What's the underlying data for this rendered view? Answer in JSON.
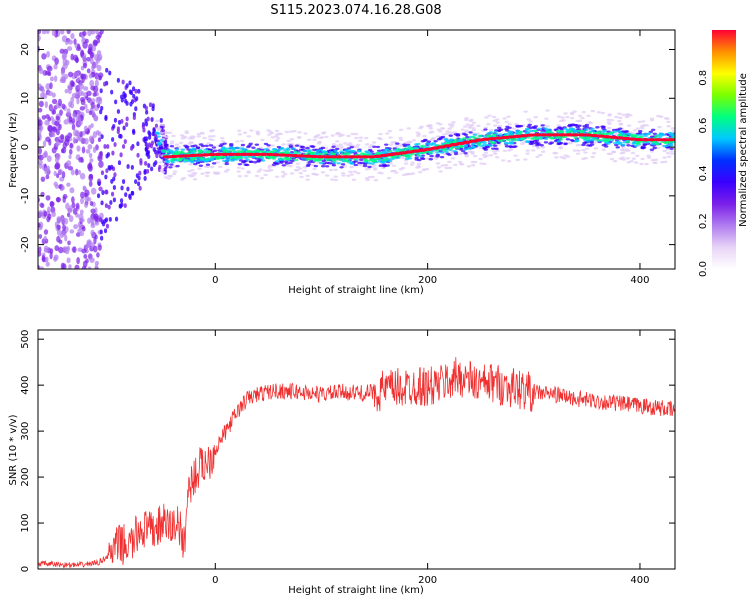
{
  "chart_data": [
    {
      "type": "heatmap",
      "title": "S115.2023.074.16.28.G08",
      "xlabel": "Height of straight line (km)",
      "ylabel": "Frequency (Hz)",
      "xlim": [
        -167,
        433
      ],
      "ylim": [
        -25,
        24
      ],
      "xticks": [
        0,
        200,
        400
      ],
      "yticks": [
        -20,
        -10,
        0,
        10,
        20
      ],
      "colorbar": {
        "label": "Normalized spectral amplitude",
        "range": [
          0,
          1
        ],
        "ticks": [
          "0.0",
          "0.2",
          "0.4",
          "0.6",
          "0.8"
        ],
        "colors": [
          "#ffffff",
          "#e8d4f6",
          "#b07cf0",
          "#7b1fe8",
          "#3a00ff",
          "#0030ff",
          "#00c8ff",
          "#00ff80",
          "#7aff00",
          "#ffff00",
          "#ff9000",
          "#ff0033"
        ]
      },
      "ridge": {
        "description_free": true,
        "points": [
          [
            -100,
            -1
          ],
          [
            -80,
            2
          ],
          [
            -65,
            1
          ],
          [
            -55,
            2
          ],
          [
            -45,
            -2
          ],
          [
            0,
            -1.5
          ],
          [
            50,
            -1.5
          ],
          [
            100,
            -2
          ],
          [
            150,
            -2
          ],
          [
            200,
            -0.5
          ],
          [
            250,
            1.5
          ],
          [
            300,
            2.5
          ],
          [
            350,
            2.5
          ],
          [
            400,
            1.5
          ],
          [
            433,
            1.5
          ]
        ]
      }
    },
    {
      "type": "line",
      "xlabel": "Height of straight line (km)",
      "ylabel": "SNR (10 * v/v)",
      "xlim": [
        -167,
        433
      ],
      "ylim": [
        0,
        520
      ],
      "xticks": [
        0,
        200,
        400
      ],
      "yticks": [
        0,
        100,
        200,
        300,
        400,
        500
      ],
      "series": [
        {
          "color": "#f03030",
          "x": [
            -167,
            -150,
            -130,
            -110,
            -100,
            -90,
            -80,
            -70,
            -60,
            -50,
            -40,
            -35,
            -30,
            -25,
            -20,
            -15,
            -10,
            -5,
            0,
            10,
            20,
            30,
            40,
            50,
            60,
            80,
            100,
            120,
            140,
            160,
            180,
            190,
            200,
            210,
            220,
            230,
            240,
            250,
            260,
            280,
            300,
            320,
            340,
            360,
            380,
            400,
            420,
            433
          ],
          "y": [
            12,
            10,
            8,
            14,
            30,
            55,
            50,
            90,
            80,
            100,
            90,
            110,
            40,
            180,
            200,
            220,
            230,
            240,
            260,
            300,
            340,
            370,
            380,
            385,
            388,
            385,
            380,
            385,
            382,
            390,
            395,
            400,
            395,
            400,
            410,
            420,
            410,
            400,
            405,
            395,
            385,
            380,
            370,
            365,
            360,
            355,
            350,
            345
          ]
        }
      ]
    }
  ]
}
